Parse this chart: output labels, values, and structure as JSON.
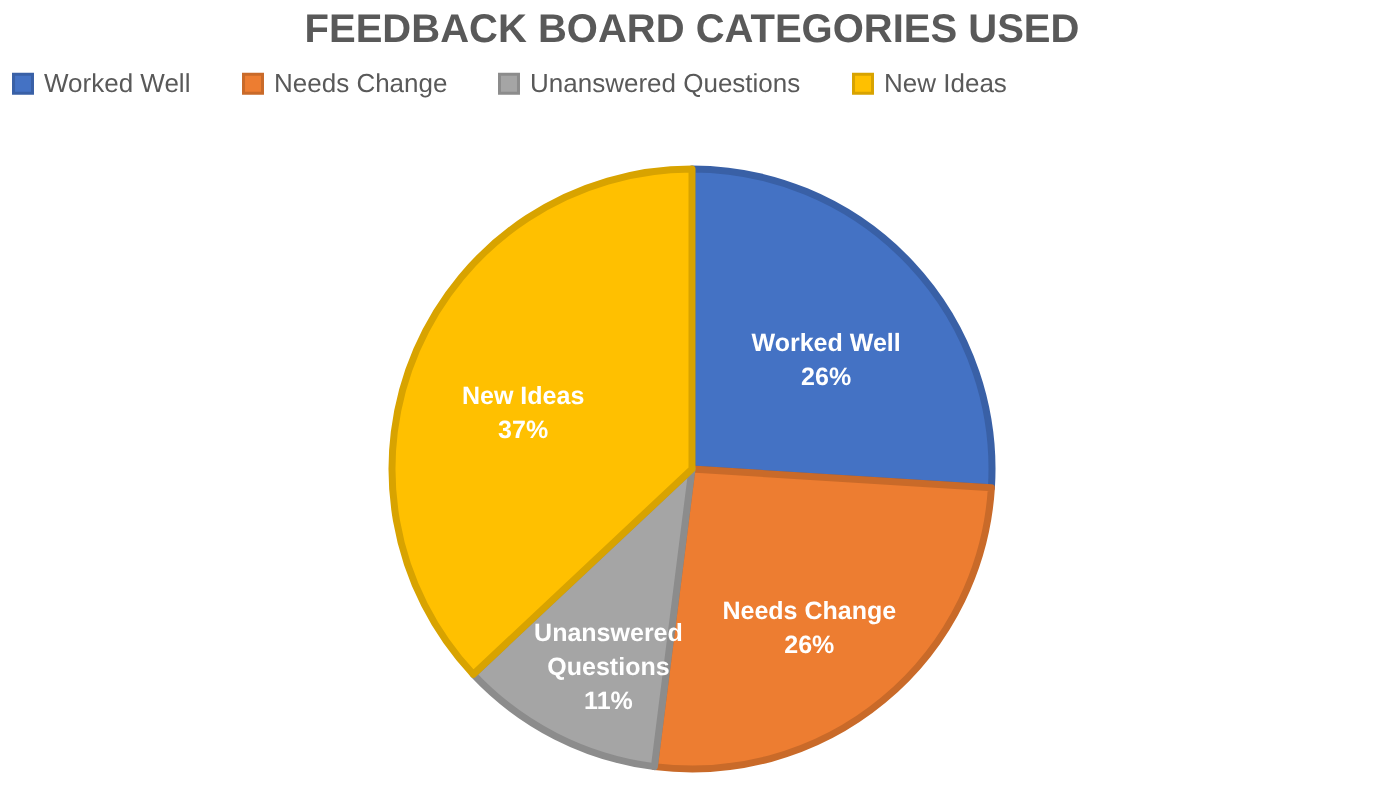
{
  "chart_data": {
    "type": "pie",
    "title": "FEEDBACK  BOARD CATEGORIES USED",
    "categories": [
      "Worked Well",
      "Needs Change",
      "Unanswered Questions",
      "New Ideas"
    ],
    "values": [
      26,
      26,
      11,
      37
    ],
    "colors": [
      "#4472c4",
      "#ed7d31",
      "#a5a5a5",
      "#ffc000"
    ],
    "value_labels": [
      "26%",
      "26%",
      "11%",
      "37%"
    ],
    "legend": "top"
  }
}
